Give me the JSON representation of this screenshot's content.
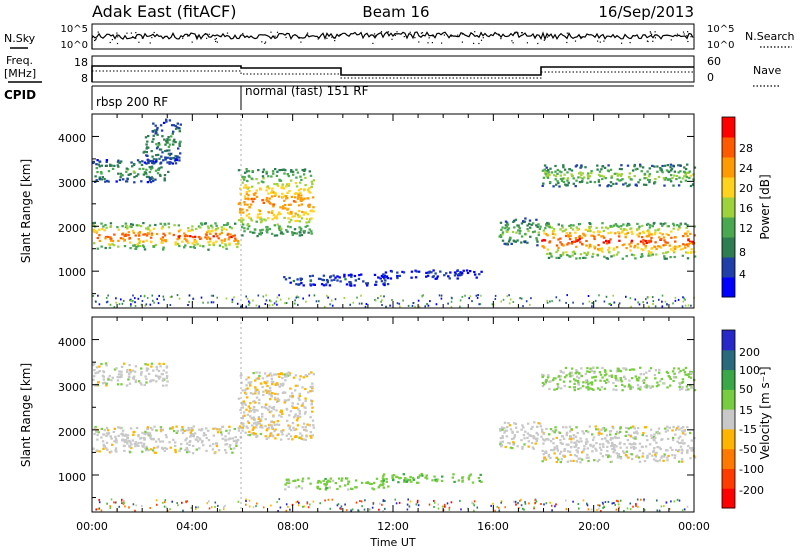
{
  "header": {
    "station": "Adak East (fitACF)",
    "beam": "Beam 16",
    "date": "16/Sep/2013"
  },
  "panels": {
    "nsky_label": "N.Sky",
    "nsky_ticks": [
      "10^5",
      "10^0"
    ],
    "nsearch_label": "N.Search",
    "nsearch_ticks": [
      "10^5",
      "10^0"
    ],
    "freq_label_top": "Freq.",
    "freq_label_unit": "[MHz]",
    "freq_ticks": [
      "18",
      "8"
    ],
    "nave_label": "Nave",
    "nave_ticks": [
      "60",
      "0"
    ],
    "cpid_label": "CPID",
    "cpid_segments": [
      "rbsp 200 RF",
      "normal (fast) 151 RF"
    ]
  },
  "axes": {
    "ylabel": "Slant Range [km]",
    "yticks": [
      "4000",
      "3000",
      "2000",
      "1000"
    ],
    "xticks": [
      "00:00",
      "04:00",
      "08:00",
      "12:00",
      "16:00",
      "20:00",
      "00:00"
    ],
    "xlabel": "Time UT"
  },
  "colorbars": {
    "power": {
      "label": "Power [dB]",
      "ticks": [
        "28",
        "24",
        "20",
        "16",
        "12",
        "8",
        "4"
      ],
      "colors": [
        "#0000ff",
        "#1e40a8",
        "#2e7d52",
        "#49a850",
        "#9ed23c",
        "#ffd21e",
        "#ff9a00",
        "#ff5a00",
        "#ff0000"
      ]
    },
    "velocity": {
      "label": "Velocity [m s⁻¹]",
      "ticks": [
        "200",
        "100",
        "50",
        "15",
        "-15",
        "-50",
        "-100",
        "-200"
      ],
      "colors": [
        "#2828c8",
        "#2a6a7a",
        "#3aa848",
        "#78cc40",
        "#c8c8c8",
        "#ffb400",
        "#ff7800",
        "#ff3c00",
        "#ff0000"
      ]
    }
  },
  "chart_data": [
    {
      "type": "heatmap",
      "title": "Power",
      "x_axis": "Time UT (hours)",
      "y_axis": "Slant Range [km]",
      "xlim": [
        0,
        24
      ],
      "ylim": [
        180,
        4500
      ],
      "colorbar_label": "Power [dB]",
      "clim": [
        0,
        30
      ],
      "bands": [
        {
          "t": [
            0,
            5.8
          ],
          "range": [
            1500,
            2100
          ],
          "power": 26
        },
        {
          "t": [
            5.8,
            8.8
          ],
          "range": [
            1800,
            3300
          ],
          "power": 24
        },
        {
          "t": [
            0,
            3
          ],
          "range": [
            3000,
            3500
          ],
          "power": 12
        },
        {
          "t": [
            2,
            3.5
          ],
          "range": [
            3400,
            4400
          ],
          "power": 10
        },
        {
          "t": [
            7.6,
            11.8
          ],
          "range": [
            700,
            950
          ],
          "power": 6
        },
        {
          "t": [
            11.5,
            15.5
          ],
          "range": [
            850,
            1050
          ],
          "power": 5
        },
        {
          "t": [
            16.2,
            17.9
          ],
          "range": [
            1600,
            2200
          ],
          "power": 14
        },
        {
          "t": [
            17.9,
            24
          ],
          "range": [
            1300,
            2100
          ],
          "power": 27
        },
        {
          "t": [
            17.9,
            24
          ],
          "range": [
            2900,
            3400
          ],
          "power": 15
        }
      ]
    },
    {
      "type": "heatmap",
      "title": "Velocity",
      "x_axis": "Time UT (hours)",
      "y_axis": "Slant Range [km]",
      "xlim": [
        0,
        24
      ],
      "ylim": [
        180,
        4500
      ],
      "colorbar_label": "Velocity [m s⁻¹]",
      "clim": [
        -250,
        250
      ],
      "bands": [
        {
          "t": [
            0,
            5.8
          ],
          "range": [
            1500,
            2100
          ],
          "velocity": 0
        },
        {
          "t": [
            5.8,
            8.8
          ],
          "range": [
            1800,
            3300
          ],
          "velocity": -10
        },
        {
          "t": [
            0,
            3
          ],
          "range": [
            3000,
            3500
          ],
          "velocity": 0
        },
        {
          "t": [
            7.6,
            11.8
          ],
          "range": [
            700,
            950
          ],
          "velocity": 30
        },
        {
          "t": [
            11.5,
            15.5
          ],
          "range": [
            850,
            1050
          ],
          "velocity": 40
        },
        {
          "t": [
            16.2,
            17.9
          ],
          "range": [
            1600,
            2200
          ],
          "velocity": 0
        },
        {
          "t": [
            17.9,
            24
          ],
          "range": [
            1300,
            2100
          ],
          "velocity": 0
        },
        {
          "t": [
            17.9,
            24
          ],
          "range": [
            2900,
            3400
          ],
          "velocity": 20
        }
      ]
    }
  ]
}
